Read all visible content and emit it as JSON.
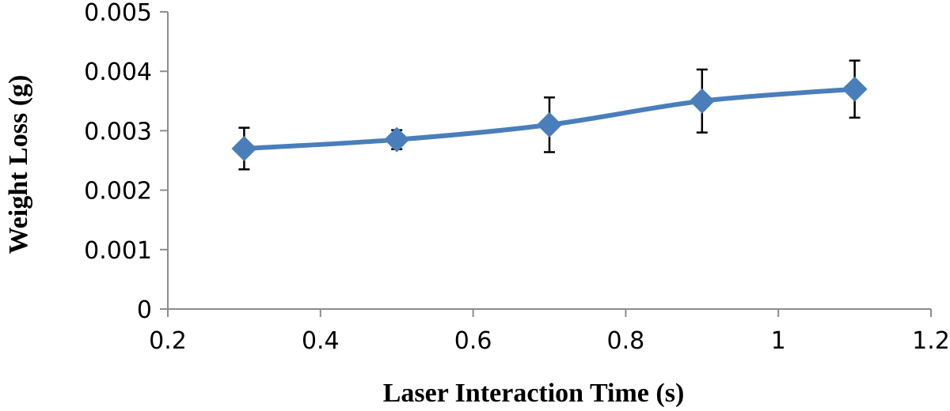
{
  "chart_data": {
    "type": "line",
    "title": "",
    "xlabel": "Laser Interaction Time (s)",
    "ylabel": "Weight Loss (g)",
    "xlim": [
      0.2,
      1.2
    ],
    "ylim": [
      0,
      0.005
    ],
    "x_ticks": [
      "0.2",
      "0.4",
      "0.6",
      "0.8",
      "1",
      "1.2"
    ],
    "y_ticks": [
      "0",
      "0.001",
      "0.002",
      "0.003",
      "0.004",
      "0.005"
    ],
    "grid": false,
    "legend": "none",
    "series": [
      {
        "color": "#4a7ebb",
        "marker": "diamond",
        "smooth": true,
        "x": [
          0.3,
          0.5,
          0.7,
          0.9,
          1.1
        ],
        "y": [
          0.0027,
          0.00285,
          0.0031,
          0.0035,
          0.0037
        ],
        "error": [
          0.00035,
          0.00016,
          0.00046,
          0.00053,
          0.00048
        ]
      }
    ]
  }
}
